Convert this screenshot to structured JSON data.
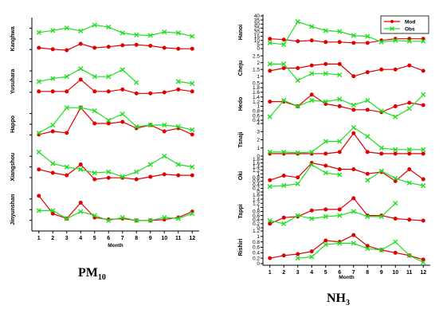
{
  "colors": {
    "mod": "#e00000",
    "obs": "#22dd22"
  },
  "captions": {
    "left_main": "PM",
    "left_sub": "10",
    "right_main": "NH",
    "right_sub": "3"
  },
  "chart_data": [
    {
      "type": "line",
      "id": "pm10",
      "xlabel": "Month",
      "x": [
        1,
        2,
        3,
        4,
        5,
        6,
        7,
        8,
        9,
        10,
        11,
        12
      ],
      "panels": [
        {
          "station": "Kanghwa",
          "ylim": [
            0,
            80
          ],
          "yticks": [],
          "series": [
            {
              "name": "Mod",
              "values": [
                22,
                19,
                17,
                30,
                22,
                24,
                27,
                28,
                26,
                22,
                20,
                20
              ]
            },
            {
              "name": "Obs",
              "values": [
                53,
                57,
                62,
                56,
                68,
                64,
                52,
                48,
                47,
                54,
                52,
                45
              ]
            }
          ]
        },
        {
          "station": "Yusuhara",
          "ylim": [
            0,
            40
          ],
          "yticks": [],
          "series": [
            {
              "name": "Mod",
              "values": [
                10,
                10,
                10,
                22,
                10,
                10,
                12,
                8,
                8,
                9,
                12,
                10
              ]
            },
            {
              "name": "Obs",
              "values": [
                20,
                23,
                25,
                33,
                25,
                25,
                32,
                19,
                null,
                null,
                20,
                18
              ]
            }
          ]
        },
        {
          "station": "Happo",
          "ylim": [
            0,
            25
          ],
          "yticks": [],
          "series": [
            {
              "name": "Mod",
              "values": [
                6,
                8,
                7,
                23,
                13,
                13,
                14,
                10,
                12,
                8,
                10,
                6
              ]
            },
            {
              "name": "Obs",
              "values": [
                7,
                12,
                23,
                23,
                21,
                15,
                19,
                11,
                12,
                12,
                11,
                9
              ]
            }
          ]
        },
        {
          "station": "Xiangshou",
          "ylim": [
            10,
            90
          ],
          "yticks": [],
          "series": [
            {
              "name": "Mod",
              "values": [
                45,
                38,
                33,
                55,
                25,
                28,
                28,
                25,
                30,
                35,
                33,
                33
              ]
            },
            {
              "name": "Obs",
              "values": [
                80,
                57,
                50,
                45,
                38,
                40,
                30,
                40,
                55,
                72,
                55,
                50
              ]
            }
          ]
        },
        {
          "station": "Jinyunshan",
          "ylim": [
            0,
            200
          ],
          "yticks": [],
          "series": [
            {
              "name": "Mod",
              "values": [
                170,
                80,
                55,
                135,
                60,
                50,
                55,
                45,
                45,
                50,
                60,
                90
              ]
            },
            {
              "name": "Obs",
              "values": [
                95,
                95,
                55,
                90,
                70,
                45,
                60,
                45,
                45,
                60,
                55,
                80
              ]
            }
          ]
        }
      ]
    },
    {
      "type": "line",
      "id": "nh3",
      "xlabel": "Month",
      "x": [
        1,
        2,
        3,
        4,
        5,
        6,
        7,
        8,
        9,
        10,
        11,
        12
      ],
      "legend": {
        "position": "top-right",
        "entries": [
          "Mod",
          "Obs"
        ]
      },
      "panels": [
        {
          "station": "Hanoi",
          "ylim": [
            0,
            40
          ],
          "yticks": [
            "0",
            "5",
            "10",
            "15",
            "20",
            "25",
            "30",
            "35",
            "40"
          ],
          "series": [
            {
              "name": "Mod",
              "values": [
                12,
                11,
                9,
                10,
                8,
                8,
                7,
                7,
                10,
                12,
                12,
                12
              ]
            },
            {
              "name": "Obs",
              "values": [
                7,
                5,
                33,
                27,
                22,
                21,
                16,
                15,
                8,
                10,
                9,
                9
              ]
            }
          ]
        },
        {
          "station": "Cheju",
          "ylim": [
            0.4,
            2.8
          ],
          "yticks": [
            "0.5",
            "1",
            "1.5",
            "2",
            "2.5"
          ],
          "series": [
            {
              "name": "Mod",
              "values": [
                1.4,
                1.6,
                1.6,
                1.8,
                1.9,
                1.9,
                1.0,
                1.3,
                1.5,
                1.5,
                1.8,
                1.4
              ]
            },
            {
              "name": "Obs",
              "values": [
                1.9,
                1.9,
                0.7,
                1.2,
                1.2,
                1.1,
                null,
                null,
                null,
                null,
                null,
                null
              ]
            }
          ]
        },
        {
          "station": "Hedo",
          "ylim": [
            0.4,
            1.8
          ],
          "yticks": [
            "0.4",
            "0.6",
            "0.8",
            "1",
            "1.2",
            "1.4",
            "1.6",
            "1.8"
          ],
          "series": [
            {
              "name": "Mod",
              "values": [
                1.2,
                1.2,
                1.0,
                1.5,
                1.1,
                1.0,
                0.85,
                0.85,
                0.75,
                1.0,
                1.15,
                1.05
              ]
            },
            {
              "name": "Obs",
              "values": [
                0.55,
                1.25,
                1.0,
                1.25,
                1.2,
                1.3,
                1.05,
                1.25,
                0.8,
                0.55,
                0.9,
                1.5
              ]
            }
          ]
        },
        {
          "station": "Tsnaji",
          "ylim": [
            0,
            4
          ],
          "yticks": [
            "0",
            "1",
            "2",
            "3",
            "4"
          ],
          "series": [
            {
              "name": "Mod",
              "values": [
                0.3,
                0.3,
                0.3,
                0.3,
                0.3,
                0.5,
                2.8,
                0.5,
                0.3,
                0.3,
                0.3,
                0.3
              ]
            },
            {
              "name": "Obs",
              "values": [
                0.5,
                0.5,
                0.4,
                0.5,
                1.8,
                1.8,
                3.5,
                2.4,
                1.0,
                0.8,
                0.8,
                0.8
              ]
            }
          ]
        },
        {
          "station": "Oki",
          "ylim": [
            0,
            1.8
          ],
          "yticks": [
            "0",
            "0.2",
            "0.4",
            "0.6",
            "0.8",
            "1",
            "1.2",
            "1.4",
            "1.6",
            "1.8"
          ],
          "series": [
            {
              "name": "Mod",
              "values": [
                0.65,
                0.9,
                0.8,
                1.6,
                1.45,
                1.25,
                1.25,
                1.0,
                1.1,
                0.6,
                1.25,
                0.7
              ]
            },
            {
              "name": "Obs",
              "values": [
                0.3,
                0.35,
                0.45,
                1.5,
                1.05,
                0.95,
                null,
                0.65,
                1.15,
                0.75,
                0.5,
                0.35
              ]
            }
          ]
        },
        {
          "station": "Tappi",
          "ylim": [
            0,
            1.6
          ],
          "yticks": [
            "0",
            "0.2",
            "0.4",
            "0.6",
            "0.8",
            "1",
            "1.2",
            "1.4",
            "1.6"
          ],
          "series": [
            {
              "name": "Mod",
              "values": [
                0.2,
                0.5,
                0.55,
                0.85,
                0.9,
                0.9,
                1.45,
                0.6,
                0.6,
                0.45,
                0.4,
                0.35
              ]
            },
            {
              "name": "Obs",
              "values": [
                0.35,
                0.2,
                0.6,
                0.45,
                0.55,
                0.6,
                0.8,
                0.55,
                0.55,
                1.2,
                null,
                null
              ]
            }
          ]
        },
        {
          "station": "Rishiri",
          "ylim": [
            0,
            1.2
          ],
          "yticks": [
            "0",
            "0.2",
            "0.4",
            "0.6",
            "0.8",
            "1",
            "1.2"
          ],
          "series": [
            {
              "name": "Mod",
              "values": [
                0.2,
                0.3,
                0.35,
                0.45,
                0.85,
                0.8,
                1.05,
                0.65,
                0.5,
                0.4,
                0.3,
                0.15
              ]
            },
            {
              "name": "Obs",
              "values": [
                null,
                null,
                0.2,
                0.25,
                0.7,
                0.75,
                0.75,
                0.55,
                0.5,
                0.8,
                0.3,
                0.05
              ]
            }
          ]
        }
      ]
    }
  ]
}
